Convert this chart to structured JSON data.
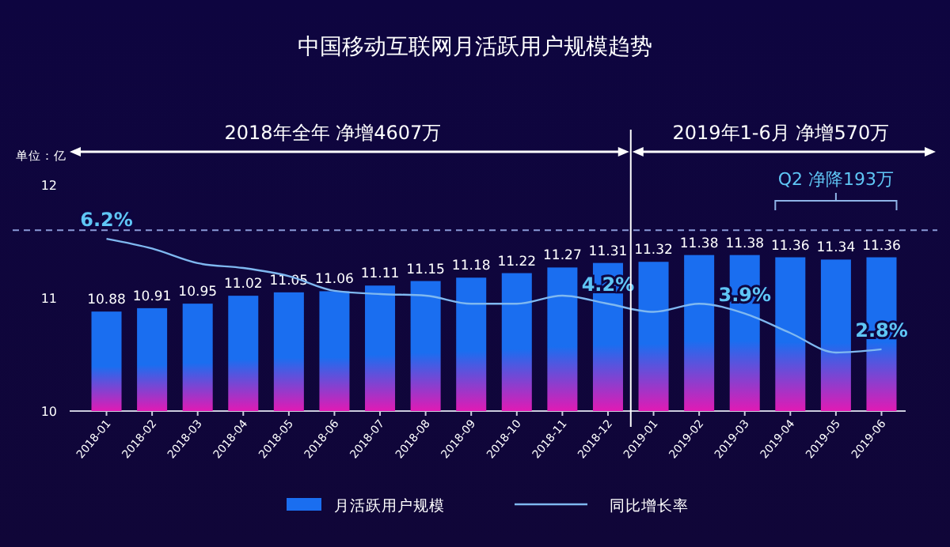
{
  "chart_data": {
    "type": "bar",
    "title": "中国移动互联网月活跃用户规模趋势",
    "categories": [
      "2018-01",
      "2018-02",
      "2018-03",
      "2018-04",
      "2018-05",
      "2018-06",
      "2018-07",
      "2018-08",
      "2018-09",
      "2018-10",
      "2018-11",
      "2018-12",
      "2019-01",
      "2019-02",
      "2019-03",
      "2019-04",
      "2019-05",
      "2019-06"
    ],
    "series": [
      {
        "name": "月活跃用户规模",
        "color": "#1a6ef0",
        "values": [
          10.88,
          10.91,
          10.95,
          11.02,
          11.05,
          11.06,
          11.11,
          11.15,
          11.18,
          11.22,
          11.27,
          11.31,
          11.32,
          11.38,
          11.38,
          11.36,
          11.34,
          11.36
        ]
      },
      {
        "name": "同比增长率",
        "type": "line",
        "axis": "y2",
        "color": "#7fb8f0",
        "values": [
          6.2,
          5.9,
          5.45,
          5.3,
          5.05,
          4.6,
          4.5,
          4.45,
          4.2,
          4.2,
          4.45,
          4.2,
          3.95,
          4.2,
          3.9,
          3.3,
          2.7,
          2.8
        ],
        "value_labels": [
          "6.2%",
          null,
          null,
          null,
          null,
          null,
          null,
          null,
          null,
          null,
          null,
          "4.2%",
          null,
          null,
          "3.9%",
          null,
          null,
          "2.8%"
        ]
      }
    ],
    "ylim": [
      10,
      12
    ],
    "yticks": [
      10,
      11,
      12
    ],
    "data_labels": true,
    "legend": "bottom",
    "marker": "none",
    "line_style": "solid",
    "ref_lines": [
      {
        "axis": "y",
        "value": 11.6,
        "color": "#8a9ad8",
        "line_style": "dashed"
      }
    ],
    "annotations": [
      "单位：亿",
      "2018年全年 净增4607万",
      "2019年1-6月 净增570万",
      "Q2 净降193万"
    ]
  }
}
